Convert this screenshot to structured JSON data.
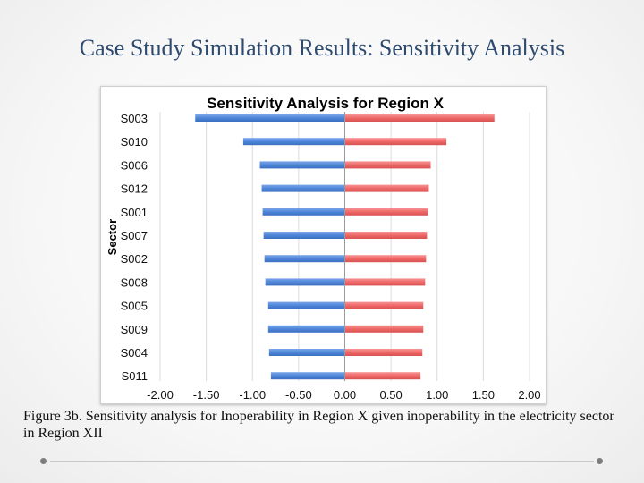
{
  "slide": {
    "title": "Case Study Simulation Results: Sensitivity Analysis",
    "caption": "Figure 3b. Sensitivity analysis for Inoperability in Region X given inoperability in the electricity sector in Region XII"
  },
  "chart_data": {
    "type": "bar",
    "orientation": "horizontal",
    "title": "Sensitivity Analysis for Region X",
    "ylabel": "Sector",
    "xlabel": "",
    "categories": [
      "S003",
      "S010",
      "S006",
      "S012",
      "S001",
      "S007",
      "S002",
      "S008",
      "S005",
      "S009",
      "S004",
      "S011"
    ],
    "series": [
      {
        "values": [
          -1.62,
          -1.1,
          -0.92,
          -0.9,
          -0.89,
          -0.88,
          -0.87,
          -0.86,
          -0.83,
          -0.83,
          -0.82,
          -0.8
        ],
        "color": "#4f86d8"
      },
      {
        "values": [
          1.62,
          1.1,
          0.93,
          0.91,
          0.9,
          0.89,
          0.88,
          0.87,
          0.85,
          0.85,
          0.84,
          0.82
        ],
        "color": "#ee6868"
      }
    ],
    "xlim": [
      -2.0,
      2.0
    ],
    "xticks": [
      "-2.00",
      "-1.50",
      "-1.00",
      "-0.50",
      "0.00",
      "0.50",
      "1.00",
      "1.50",
      "2.00"
    ],
    "xtick_values": [
      -2.0,
      -1.5,
      -1.0,
      -0.5,
      0.0,
      0.5,
      1.0,
      1.5,
      2.0
    ],
    "grid": true
  }
}
